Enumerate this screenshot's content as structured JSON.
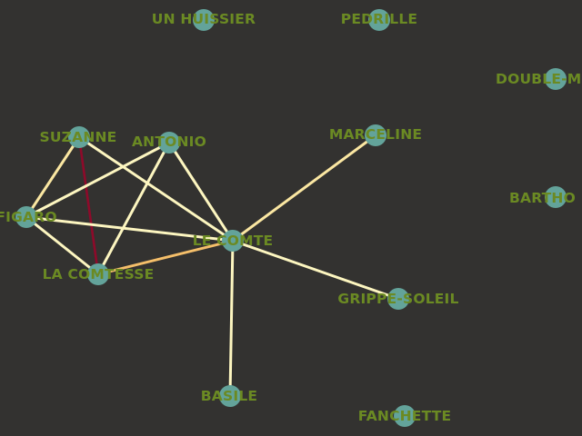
{
  "colors": {
    "background": "#333230",
    "node_fill": "#63a39a",
    "label": "#6b8a23",
    "edge_light": "#fdf6c0",
    "edge_pale_yellow": "#fbe7a2",
    "edge_orange": "#f5bf6a",
    "edge_dark_red": "#8e0a2a"
  },
  "nodes": [
    {
      "id": "huissier",
      "label": "UN HUISSIER"
    },
    {
      "id": "pedrille",
      "label": "PEDRILLE"
    },
    {
      "id": "double",
      "label": "DOUBLE-M"
    },
    {
      "id": "suzanne",
      "label": "SUZANNE"
    },
    {
      "id": "antonio",
      "label": "ANTONIO"
    },
    {
      "id": "marceline",
      "label": "MARCELINE"
    },
    {
      "id": "figaro",
      "label": "FIGARO"
    },
    {
      "id": "bartho",
      "label": "BARTHO"
    },
    {
      "id": "comte",
      "label": "LE COMTE"
    },
    {
      "id": "comtesse",
      "label": "LA COMTESSE"
    },
    {
      "id": "grippe",
      "label": "GRIPPE-SOLEIL"
    },
    {
      "id": "basile",
      "label": "BASILE"
    },
    {
      "id": "fanchette",
      "label": "FANCHETTE"
    }
  ],
  "edges": [
    {
      "source": "suzanne",
      "target": "figaro",
      "color": "#fbe7a2"
    },
    {
      "source": "suzanne",
      "target": "comtesse",
      "color": "#8e0a2a"
    },
    {
      "source": "suzanne",
      "target": "comte",
      "color": "#fdf6c0"
    },
    {
      "source": "antonio",
      "target": "figaro",
      "color": "#fdf6c0"
    },
    {
      "source": "antonio",
      "target": "comtesse",
      "color": "#fdf6c0"
    },
    {
      "source": "antonio",
      "target": "comte",
      "color": "#fdf6c0"
    },
    {
      "source": "figaro",
      "target": "comte",
      "color": "#fdf6c0"
    },
    {
      "source": "figaro",
      "target": "comtesse",
      "color": "#fdf6c0"
    },
    {
      "source": "comtesse",
      "target": "comte",
      "color": "#f5bf6a"
    },
    {
      "source": "marceline",
      "target": "comte",
      "color": "#fbe7a2"
    },
    {
      "source": "comte",
      "target": "grippe",
      "color": "#fdf6c0"
    },
    {
      "source": "comte",
      "target": "basile",
      "color": "#fdf6c0"
    }
  ]
}
